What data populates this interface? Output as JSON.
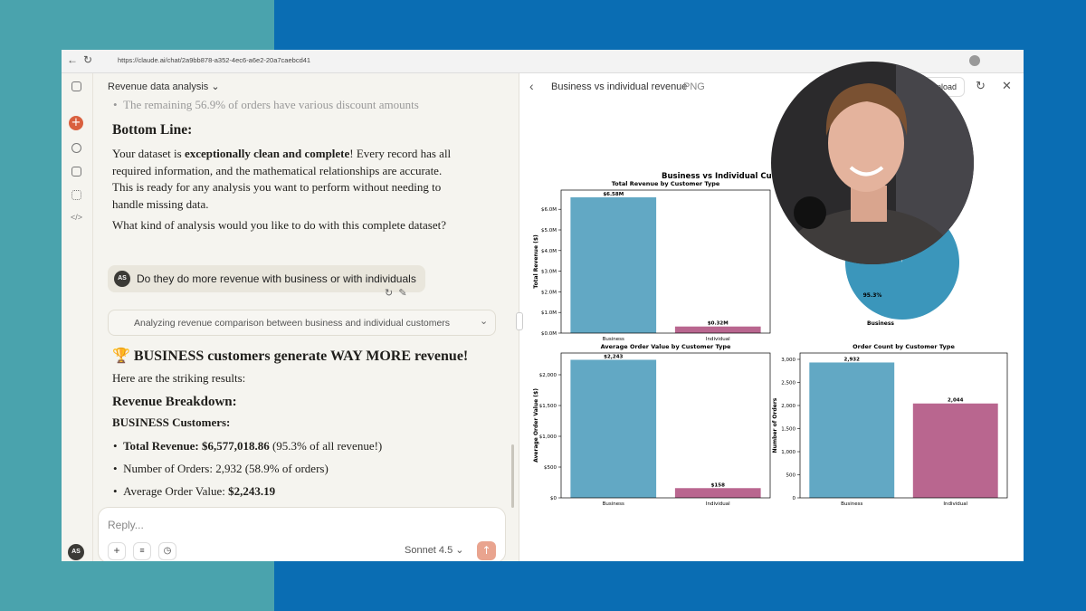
{
  "browser": {
    "url": "https://claude.ai/chat/2a9bb878-a352-4ec6-a6e2-20a7caebcd41"
  },
  "sidebar": {
    "avatar": "AS"
  },
  "chat": {
    "title": "Revenue data analysis",
    "prev_bullet": "The remaining 56.9% of orders have various discount amounts",
    "bottom_line_heading": "Bottom Line:",
    "paragraph": {
      "before": "Your dataset is ",
      "bold": "exceptionally clean and complete",
      "after": "! Every record has all required information, and the mathematical relationships are accurate. This is ready for any analysis you want to perform without needing to handle missing data."
    },
    "question": "What kind of analysis would you like to do with this complete dataset?",
    "user": {
      "avatar": "AS",
      "message": "Do they do more revenue with business or with individuals"
    },
    "thinking": "Analyzing revenue comparison between business and individual customers",
    "headline": "🏆 BUSINESS customers generate WAY MORE revenue!",
    "intro": "Here are the striking results:",
    "breakdown_heading": "Revenue Breakdown:",
    "business_heading": "BUSINESS Customers:",
    "bullets": [
      {
        "bold": "Total Revenue: $6,577,018.86",
        "text": " (95.3% of all revenue!)"
      },
      {
        "text": "Number of Orders: 2,932 (58.9% of orders)"
      },
      {
        "text": "Average Order Value: ",
        "bold": "$2,243.19"
      }
    ],
    "reply_placeholder": "Reply...",
    "model": "Sonnet 4.5"
  },
  "artifact": {
    "title": "Business vs individual revenue",
    "format": "PNG",
    "download": "Download",
    "figure_title": "Business vs Individual Cu",
    "charts": [
      {
        "type": "bar",
        "title": "Total Revenue by Customer Type",
        "y_label": "Total Revenue ($)",
        "categories": [
          "Business",
          "Individual"
        ],
        "values": [
          6.58,
          0.32
        ],
        "value_labels": [
          "$6.58M",
          "$0.32M"
        ],
        "colors": [
          "#62a8c4",
          "#b9668f"
        ],
        "ylim": [
          0,
          6.93
        ],
        "yticks": [
          {
            "value": 0,
            "label": "$0.0M"
          },
          {
            "value": 1,
            "label": "$1.0M"
          },
          {
            "value": 2,
            "label": "$2.0M"
          },
          {
            "value": 3,
            "label": "$3.0M"
          },
          {
            "value": 4,
            "label": "$4.0M"
          },
          {
            "value": 5,
            "label": "$5.0M"
          },
          {
            "value": 6,
            "label": "$6.0M"
          }
        ]
      },
      {
        "type": "pie",
        "categories": [
          "Business"
        ],
        "values": [
          95.3
        ],
        "value_labels": [
          "95.3%"
        ],
        "colors": [
          "#3b96bb"
        ]
      },
      {
        "type": "bar",
        "title": "Average Order Value by Customer Type",
        "y_label": "Average Order Value ($)",
        "categories": [
          "Business",
          "Individual"
        ],
        "values": [
          2243,
          158
        ],
        "value_labels": [
          "$2,243",
          "$158"
        ],
        "colors": [
          "#62a8c4",
          "#b9668f"
        ],
        "ylim": [
          0,
          2353
        ],
        "yticks": [
          {
            "value": 0,
            "label": "$0"
          },
          {
            "value": 500,
            "label": "$500"
          },
          {
            "value": 1000,
            "label": "$1,000"
          },
          {
            "value": 1500,
            "label": "$1,500"
          },
          {
            "value": 2000,
            "label": "$2,000"
          }
        ]
      },
      {
        "type": "bar",
        "title": "Order Count by Customer Type",
        "y_label": "Number of Orders",
        "categories": [
          "Business",
          "Individual"
        ],
        "values": [
          2932,
          2044
        ],
        "value_labels": [
          "2,932",
          "2,044"
        ],
        "colors": [
          "#62a8c4",
          "#b9668f"
        ],
        "ylim": [
          0,
          3137
        ],
        "yticks": [
          0,
          500,
          {
            "value": 1000,
            "label": "1,000"
          },
          {
            "value": 1500,
            "label": "1,500"
          },
          {
            "value": 2000,
            "label": "2,000"
          },
          {
            "value": 2500,
            "label": "2,500"
          },
          {
            "value": 3000,
            "label": "3,000"
          }
        ]
      }
    ]
  }
}
